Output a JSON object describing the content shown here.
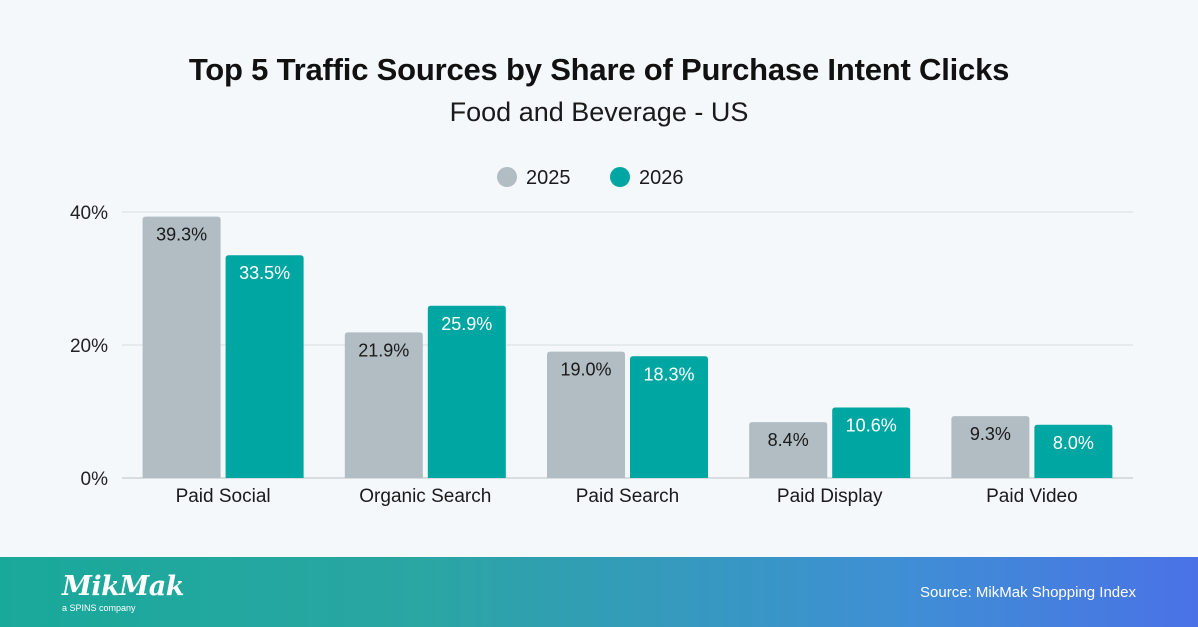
{
  "chart_data": {
    "type": "bar",
    "title": "Top 5 Traffic Sources by Share of Purchase Intent Clicks",
    "subtitle": "Food and Beverage - US",
    "categories": [
      "Paid Social",
      "Organic Search",
      "Paid Search",
      "Paid Display",
      "Paid Video"
    ],
    "series": [
      {
        "name": "2025",
        "values": [
          39.3,
          21.9,
          19.0,
          8.4,
          9.3
        ],
        "labels": [
          "39.3%",
          "21.9%",
          "19.0%",
          "8.4%",
          "9.3%"
        ],
        "color": "#b1bcc3",
        "label_color": "#1a1a1a"
      },
      {
        "name": "2026",
        "values": [
          33.5,
          25.9,
          18.3,
          10.6,
          8.0
        ],
        "labels": [
          "33.5%",
          "25.9%",
          "18.3%",
          "10.6%",
          "8.0%"
        ],
        "color": "#00a6a1",
        "label_color": "#ffffff"
      }
    ],
    "yticks": [
      0,
      20,
      40
    ],
    "ytick_labels": [
      "0%",
      "20%",
      "40%"
    ],
    "ylim": [
      0,
      40
    ],
    "grid": true,
    "legend_position": "top-center"
  },
  "footer": {
    "logo_text": "MikMak",
    "logo_subtext": "a SPINS company",
    "source": "Source: MikMak Shopping Index"
  }
}
